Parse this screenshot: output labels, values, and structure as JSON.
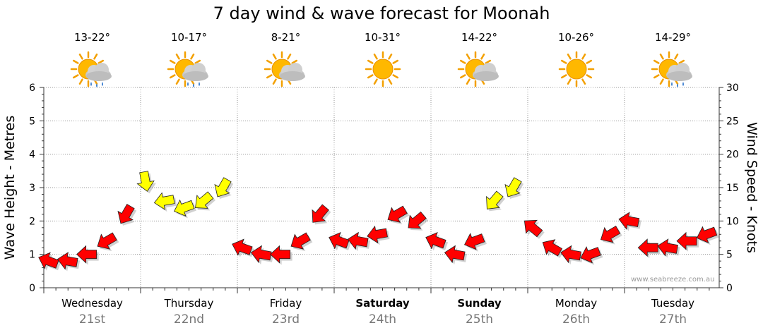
{
  "page": {
    "title": "7 day wind & wave forecast for Moonah",
    "credit": "www.seabreeze.com.au"
  },
  "days": [
    {
      "name": "Wednesday",
      "date": "21st",
      "temp": "13-22°",
      "icon": "sun-cloud-rain-icon",
      "bold": false
    },
    {
      "name": "Thursday",
      "date": "22nd",
      "temp": "10-17°",
      "icon": "sun-cloud-rain-icon",
      "bold": false
    },
    {
      "name": "Friday",
      "date": "23rd",
      "temp": "8-21°",
      "icon": "sun-cloud-icon",
      "bold": false
    },
    {
      "name": "Saturday",
      "date": "24th",
      "temp": "10-31°",
      "icon": "sun-icon",
      "bold": true
    },
    {
      "name": "Sunday",
      "date": "25th",
      "temp": "14-22°",
      "icon": "sun-cloud-icon",
      "bold": true
    },
    {
      "name": "Monday",
      "date": "26th",
      "temp": "10-26°",
      "icon": "sun-icon",
      "bold": false
    },
    {
      "name": "Tuesday",
      "date": "27th",
      "temp": "14-29°",
      "icon": "sun-cloud-rain-icon",
      "bold": false
    }
  ],
  "colors": {
    "strong_wind": "#ff0000",
    "light_wind": "#ffff00",
    "grid": "#999999"
  },
  "chart_data": {
    "type": "line",
    "title": "7 day wind & wave forecast for Moonah",
    "ylabel": "Wave Height - Metres",
    "y2label": "Wind Speed - Knots",
    "ylim": [
      0,
      6
    ],
    "y2lim": [
      0,
      30
    ],
    "yticks": [
      "0",
      "1",
      "2",
      "3",
      "4",
      "5",
      "6"
    ],
    "y2ticks": [
      "0",
      "5",
      "10",
      "15",
      "20",
      "25",
      "30"
    ],
    "xlabel": "",
    "x_unit": "days from start of Wednesday 21st",
    "series": [
      {
        "name": "Wind Speed (knots)",
        "x": [
          0.05,
          0.25,
          0.45,
          0.65,
          0.85,
          1.05,
          1.25,
          1.45,
          1.65,
          1.85,
          2.05,
          2.25,
          2.45,
          2.65,
          2.85,
          3.05,
          3.25,
          3.45,
          3.65,
          3.85,
          4.05,
          4.25,
          4.45,
          4.65,
          4.85,
          5.05,
          5.25,
          5.45,
          5.65,
          5.85,
          6.05,
          6.25,
          6.45,
          6.65,
          6.85
        ],
        "values": [
          4,
          4,
          5,
          7,
          11,
          16,
          13,
          12,
          13,
          15,
          6,
          5,
          5,
          7,
          11,
          7,
          7,
          8,
          11,
          10,
          7,
          5,
          7,
          13,
          15,
          9,
          6,
          5,
          5,
          8,
          10,
          6,
          6,
          7,
          8
        ],
        "dir_deg": [
          250,
          260,
          270,
          300,
          330,
          10,
          280,
          290,
          310,
          330,
          250,
          260,
          270,
          300,
          320,
          250,
          260,
          280,
          300,
          310,
          250,
          260,
          290,
          320,
          330,
          230,
          240,
          260,
          290,
          300,
          260,
          270,
          260,
          270,
          290
        ]
      }
    ]
  }
}
